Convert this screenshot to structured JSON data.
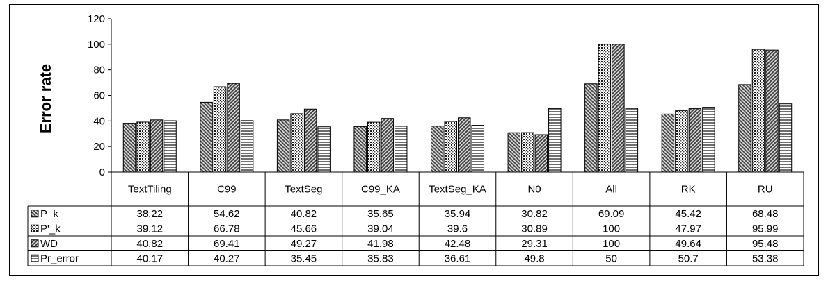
{
  "chart_data": {
    "type": "bar",
    "title": "",
    "xlabel": "",
    "ylabel": "Error rate",
    "ylim": [
      0,
      120
    ],
    "yticks": [
      0,
      20,
      40,
      60,
      80,
      100,
      120
    ],
    "grid": false,
    "legend": "data-table-left",
    "categories": [
      "TextTiling",
      "C99",
      "TextSeg",
      "C99_KA",
      "TextSeg_KA",
      "N0",
      "All",
      "RK",
      "RU"
    ],
    "series": [
      {
        "name": "P_k",
        "pattern": "diag-left",
        "values": [
          38.22,
          54.62,
          40.82,
          35.65,
          35.94,
          30.82,
          69.09,
          45.42,
          68.48
        ],
        "labels": [
          "38.22",
          "54.62",
          "40.82",
          "35.65",
          "35.94",
          "30.82",
          "69.09",
          "45.42",
          "68.48"
        ]
      },
      {
        "name": "P'_k",
        "pattern": "dots",
        "values": [
          39.12,
          66.78,
          45.66,
          39.04,
          39.6,
          30.89,
          100,
          47.97,
          95.99
        ],
        "labels": [
          "39.12",
          "66.78",
          "45.66",
          "39.04",
          "39.6",
          "30.89",
          "100",
          "47.97",
          "95.99"
        ]
      },
      {
        "name": "WD",
        "pattern": "diag-right",
        "values": [
          40.82,
          69.41,
          49.27,
          41.98,
          42.48,
          29.31,
          100,
          49.64,
          95.48
        ],
        "labels": [
          "40.82",
          "69.41",
          "49.27",
          "41.98",
          "42.48",
          "29.31",
          "100",
          "49.64",
          "95.48"
        ]
      },
      {
        "name": "Pr_error",
        "pattern": "horizontal",
        "values": [
          40.17,
          40.27,
          35.45,
          35.83,
          36.61,
          49.8,
          50,
          50.7,
          53.38
        ],
        "labels": [
          "40.17",
          "40.27",
          "35.45",
          "35.83",
          "36.61",
          "49.8",
          "50",
          "50.7",
          "53.38"
        ]
      }
    ]
  }
}
